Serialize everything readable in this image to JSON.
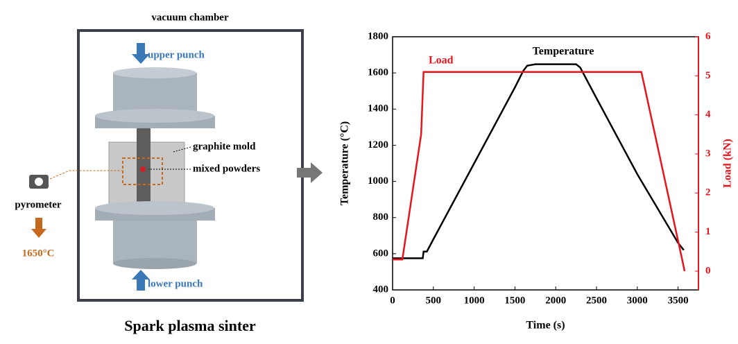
{
  "diagram": {
    "chamber": "vacuum chamber",
    "upper": "upper punch",
    "mold": "graphite mold",
    "powders": "mixed powders",
    "pyrometer": "pyrometer",
    "temperature": "1650°C",
    "lower": "lower punch",
    "caption": "Spark plasma sinter"
  },
  "chart_data": {
    "type": "line",
    "x_label": "Time (s)",
    "y_label": "Temperature (°C)",
    "y2_label": "Load (kN)",
    "xlim": [
      0,
      3750
    ],
    "xticks": [
      0,
      500,
      1000,
      1500,
      2000,
      2500,
      3000,
      3500
    ],
    "ylim": [
      400,
      1800
    ],
    "yticks": [
      400,
      600,
      800,
      1000,
      1200,
      1400,
      1600,
      1800
    ],
    "y2lim": [
      -0.48,
      6
    ],
    "y2ticks": [
      0,
      1,
      2,
      3,
      4,
      5,
      6
    ],
    "series": [
      {
        "name": "Temperature",
        "color": "#000000",
        "x": [
          0,
          370,
          380,
          420,
          500,
          1000,
          1500,
          1600,
          1650,
          1750,
          2250,
          2300,
          2500,
          3000,
          3500,
          3570
        ],
        "values": [
          575,
          575,
          612,
          612,
          680,
          1100,
          1520,
          1610,
          1640,
          1648,
          1648,
          1630,
          1460,
          1040,
          660,
          620
        ]
      },
      {
        "name": "Load",
        "color": "#e8131b",
        "axis": "y2",
        "x": [
          0,
          120,
          350,
          380,
          3050,
          3550,
          3580
        ],
        "values": [
          0.3,
          0.3,
          3.5,
          5.1,
          5.1,
          0.3,
          0
        ]
      }
    ]
  }
}
